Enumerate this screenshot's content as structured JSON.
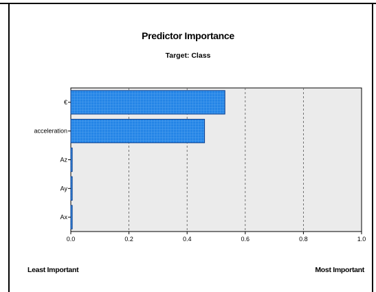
{
  "chart_data": {
    "type": "bar",
    "orientation": "horizontal",
    "title": "Predictor Importance",
    "subtitle": "Target: Class",
    "categories": [
      "€",
      "acceleration",
      "Az",
      "Ay",
      "Ax"
    ],
    "values": [
      0.53,
      0.46,
      0.005,
      0.005,
      0.005
    ],
    "xlim": [
      0.0,
      1.0
    ],
    "xticks": [
      "0.0",
      "0.2",
      "0.4",
      "0.6",
      "0.8",
      "1.0"
    ],
    "xtick_values": [
      0.0,
      0.2,
      0.4,
      0.6,
      0.8,
      1.0
    ],
    "grid": "vertical dashed",
    "bar_color": "#1f7fe0",
    "bar_edge_color": "#0a3d8c",
    "plot_background": "#ebebeb"
  },
  "labels": {
    "least": "Least Important",
    "most": "Most Important"
  }
}
